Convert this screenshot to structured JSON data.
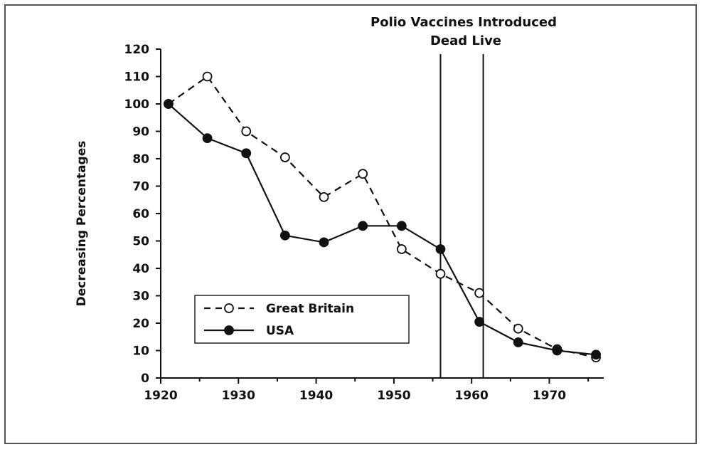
{
  "chart_data": {
    "type": "line",
    "title": "",
    "xlabel": "",
    "ylabel": "Decreasing Percentages",
    "xlim": [
      1920,
      1977
    ],
    "ylim": [
      0,
      120
    ],
    "x_ticks": [
      "1920",
      "1930",
      "1940",
      "1950",
      "1960",
      "1970"
    ],
    "y_ticks": [
      "0",
      "10",
      "20",
      "30",
      "40",
      "50",
      "60",
      "70",
      "80",
      "90",
      "100",
      "110",
      "120"
    ],
    "grid": false,
    "legend_position": "bottom-left",
    "series": [
      {
        "name": "Great Britain",
        "style": "dashed",
        "marker": "open-circle",
        "color": "#111111",
        "x": [
          1921,
          1926,
          1931,
          1936,
          1941,
          1946,
          1951,
          1956,
          1961,
          1966,
          1971,
          1976
        ],
        "values": [
          100,
          110,
          90,
          80.5,
          66,
          74.5,
          47,
          38,
          31,
          18,
          10.5,
          7.5
        ]
      },
      {
        "name": "USA",
        "style": "solid",
        "marker": "filled-circle",
        "color": "#111111",
        "x": [
          1921,
          1926,
          1931,
          1936,
          1941,
          1946,
          1951,
          1956,
          1961,
          1966,
          1971,
          1976
        ],
        "values": [
          100,
          87.5,
          82,
          52,
          49.5,
          55.5,
          55.5,
          47,
          20.5,
          13,
          10,
          8.5
        ]
      }
    ],
    "annotations": {
      "title_line1": "Polio Vaccines Introduced",
      "title_line2": "Dead Live",
      "vertical_lines": [
        {
          "name": "Dead",
          "x": 1956
        },
        {
          "name": "Live",
          "x": 1961.5
        }
      ]
    }
  }
}
